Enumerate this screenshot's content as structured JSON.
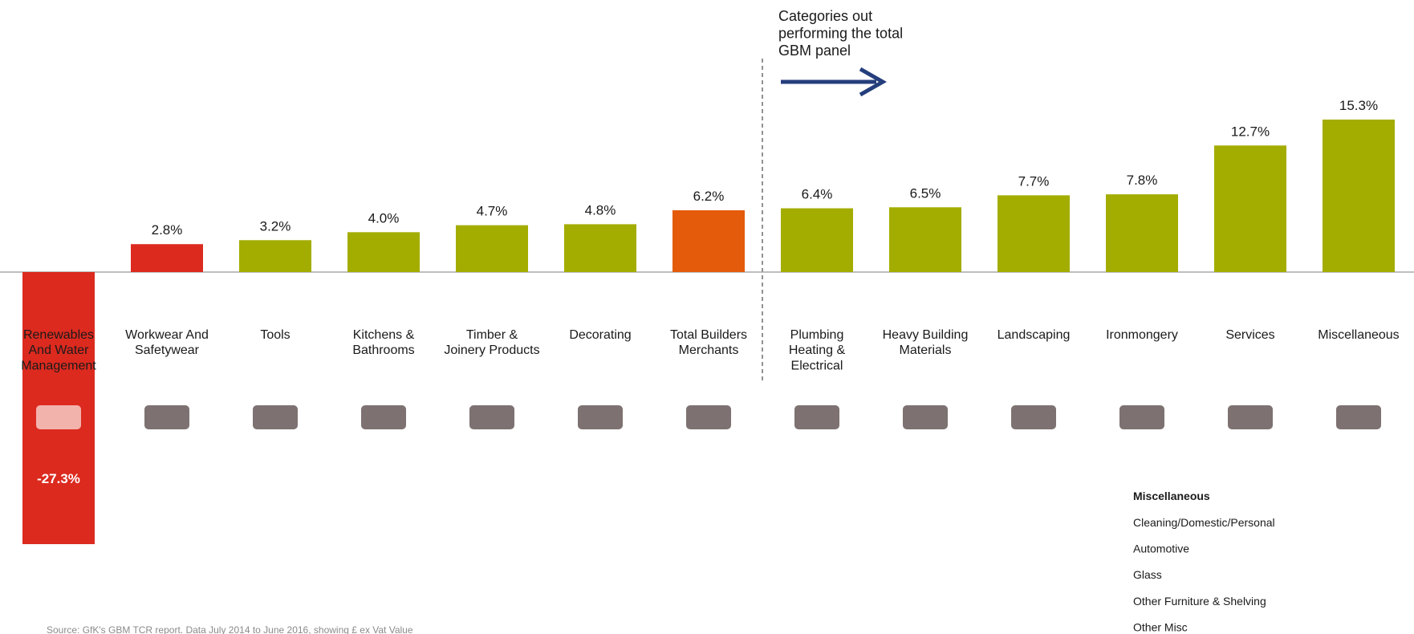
{
  "chart_data": {
    "type": "bar",
    "categories": [
      "Renewables\nAnd Water\nManagement",
      "Workwear And\nSafetywear",
      "Tools",
      "Kitchens &\nBathrooms",
      "Timber &\nJoinery Products",
      "Decorating",
      "Total Builders\nMerchants",
      "Plumbing\nHeating &\nElectrical",
      "Heavy Building\nMaterials",
      "Landscaping",
      "Ironmongery",
      "Services",
      "Miscellaneous"
    ],
    "values": [
      -27.3,
      2.8,
      3.2,
      4.0,
      4.7,
      4.8,
      6.2,
      6.4,
      6.5,
      7.7,
      7.8,
      12.7,
      15.3
    ],
    "value_labels": [
      "-27.3%",
      "2.8%",
      "3.2%",
      "4.0%",
      "4.7%",
      "4.8%",
      "6.2%",
      "6.4%",
      "6.5%",
      "7.7%",
      "7.8%",
      "12.7%",
      "15.3%"
    ],
    "colors": [
      "#dc2a1f",
      "#dc2a1f",
      "#a3ad00",
      "#a3ad00",
      "#a3ad00",
      "#a3ad00",
      "#e35b0b",
      "#a3ad00",
      "#a3ad00",
      "#a3ad00",
      "#a3ad00",
      "#a3ad00",
      "#a3ad00"
    ],
    "annotation": "Categories out\nperforming the total\nGBM panel",
    "legend_box": {
      "title": "Miscellaneous",
      "items": [
        "Cleaning/Domestic/Personal",
        "Automotive",
        "Glass",
        "Other Furniture & Shelving",
        "Other Misc"
      ]
    },
    "source": "Source: GfK's GBM TCR report.  Data July 2014  to June 2016, showing £ ex Vat Value"
  }
}
